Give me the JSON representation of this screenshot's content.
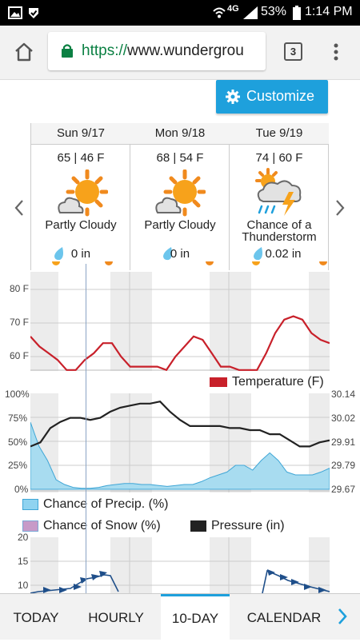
{
  "status_bar": {
    "network": "4G",
    "battery": "53%",
    "time": "1:14 PM"
  },
  "browser": {
    "url_scheme": "https://",
    "url_host": "www.wundergrou",
    "tab_count": "3"
  },
  "customize_label": "Customize",
  "forecast_days": [
    {
      "date": "Sun 9/17",
      "temps": "65 | 46 F",
      "condition_line1": "Partly Cloudy",
      "condition_line2": "",
      "precip": "0 in",
      "icon": "partly-cloudy-icon"
    },
    {
      "date": "Mon 9/18",
      "temps": "68 | 54 F",
      "condition_line1": "Partly Cloudy",
      "condition_line2": "",
      "precip": "0 in",
      "icon": "partly-cloudy-icon"
    },
    {
      "date": "Tue 9/19",
      "temps": "74 | 60 F",
      "condition_line1": "Chance of a",
      "condition_line2": "Thunderstorm",
      "precip": "0.02 in",
      "icon": "thunderstorm-icon"
    }
  ],
  "charts": {
    "temperature": {
      "y_ticks": [
        "80 F",
        "70 F",
        "60 F"
      ],
      "legend": "Temperature (F)",
      "color": "#c8202a"
    },
    "precip_pressure": {
      "left_ticks": [
        "100%",
        "75%",
        "50%",
        "25%",
        "0%"
      ],
      "right_ticks": [
        "30.14",
        "30.02",
        "29.91",
        "29.79",
        "29.67"
      ],
      "legend_precip": "Chance of Precip. (%)",
      "legend_snow": "Chance of Snow (%)",
      "legend_pressure": "Pressure (in)",
      "precip_color": "#7dcdec",
      "snow_color": "#c79ac8",
      "pressure_color": "#222222"
    },
    "wind": {
      "y_ticks": [
        "20",
        "15",
        "10"
      ]
    }
  },
  "chart_data": [
    {
      "type": "line",
      "y_label": "",
      "series": [
        {
          "name": "Temperature (F)",
          "values": [
            66,
            63,
            61,
            59,
            56,
            56,
            59,
            61,
            64,
            64,
            60,
            57,
            57,
            57,
            57,
            56,
            60,
            63,
            66,
            65,
            61,
            57,
            57,
            56,
            56,
            56,
            61,
            67,
            71,
            72,
            71,
            67,
            65,
            64
          ]
        }
      ],
      "ylim": [
        56,
        82
      ]
    },
    {
      "type": "area",
      "series": [
        {
          "name": "Chance of Precip. (%)",
          "values": [
            70,
            45,
            30,
            10,
            5,
            2,
            1,
            1,
            2,
            4,
            5,
            6,
            6,
            5,
            5,
            4,
            3,
            4,
            5,
            5,
            8,
            12,
            15,
            18,
            25,
            25,
            20,
            30,
            38,
            30,
            18,
            15,
            15,
            15,
            18,
            22
          ]
        },
        {
          "name": "Pressure (in)",
          "values": [
            29.88,
            29.9,
            29.97,
            30.0,
            30.02,
            30.02,
            30.01,
            30.02,
            30.05,
            30.07,
            30.08,
            30.09,
            30.09,
            30.1,
            30.05,
            30.01,
            29.98,
            29.98,
            29.98,
            29.98,
            29.97,
            29.97,
            29.96,
            29.96,
            29.94,
            29.94,
            29.91,
            29.88,
            29.88,
            29.9,
            29.91
          ]
        }
      ],
      "ylim": [
        0,
        100
      ],
      "y2lim": [
        29.67,
        30.14
      ]
    }
  ],
  "tabs": [
    {
      "label": "TODAY",
      "active": false
    },
    {
      "label": "HOURLY",
      "active": false
    },
    {
      "label": "10-DAY",
      "active": true
    },
    {
      "label": "CALENDAR",
      "active": false
    }
  ]
}
